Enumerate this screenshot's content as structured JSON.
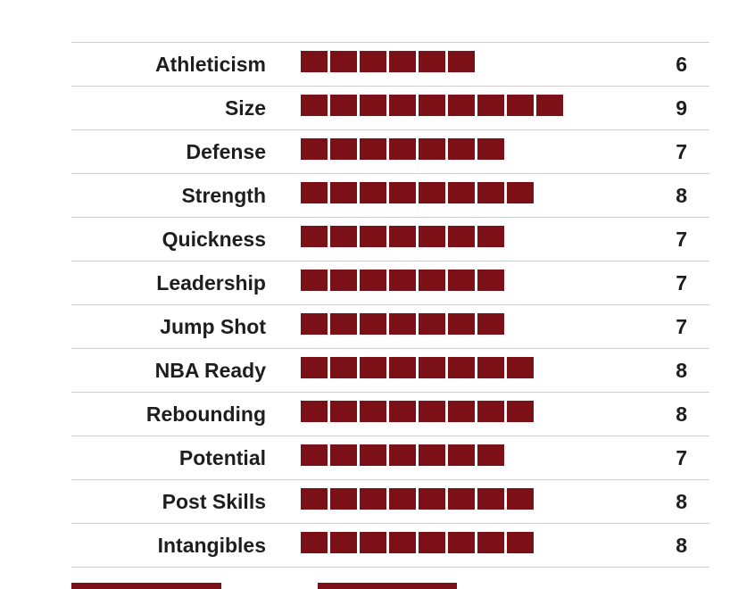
{
  "colors": {
    "bar": "#7b1116",
    "text": "#1e1e1e",
    "divider": "#cfcfcf"
  },
  "chart_data": {
    "type": "bar",
    "orientation": "horizontal",
    "scale_max": 10,
    "categories": [
      "Athleticism",
      "Size",
      "Defense",
      "Strength",
      "Quickness",
      "Leadership",
      "Jump Shot",
      "NBA Ready",
      "Rebounding",
      "Potential",
      "Post Skills",
      "Intangibles"
    ],
    "values": [
      6,
      9,
      7,
      8,
      7,
      7,
      7,
      8,
      8,
      7,
      8,
      8
    ],
    "grid": false
  }
}
